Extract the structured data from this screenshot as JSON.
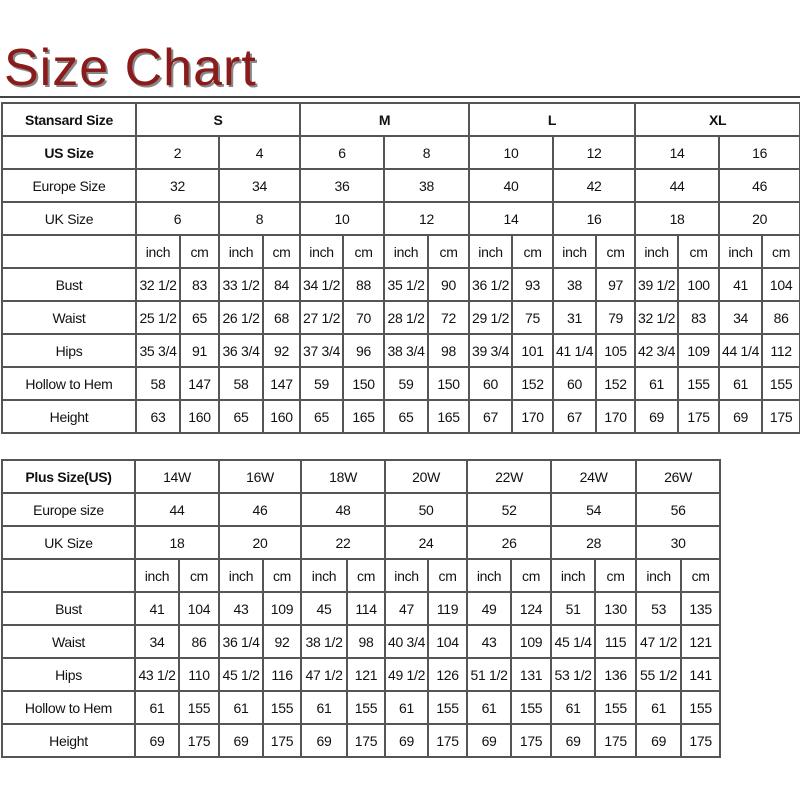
{
  "title": "Size Chart",
  "colors": {
    "title": "#8b1a1a",
    "grid": "#555555"
  },
  "standard": {
    "header_label": "Stansard Size",
    "groups": [
      "S",
      "M",
      "L",
      "XL"
    ],
    "us_label": "US Size",
    "us": [
      "2",
      "4",
      "6",
      "8",
      "10",
      "12",
      "14",
      "16"
    ],
    "eu_label": "Europe Size",
    "eu": [
      "32",
      "34",
      "36",
      "38",
      "40",
      "42",
      "44",
      "46"
    ],
    "uk_label": "UK Size",
    "uk": [
      "6",
      "8",
      "10",
      "12",
      "14",
      "16",
      "18",
      "20"
    ],
    "units": [
      "inch",
      "cm"
    ],
    "rows": [
      {
        "label": "Bust",
        "values": [
          "32 1/2",
          "83",
          "33 1/2",
          "84",
          "34 1/2",
          "88",
          "35 1/2",
          "90",
          "36 1/2",
          "93",
          "38",
          "97",
          "39 1/2",
          "100",
          "41",
          "104"
        ]
      },
      {
        "label": "Waist",
        "values": [
          "25 1/2",
          "65",
          "26 1/2",
          "68",
          "27 1/2",
          "70",
          "28 1/2",
          "72",
          "29 1/2",
          "75",
          "31",
          "79",
          "32 1/2",
          "83",
          "34",
          "86"
        ]
      },
      {
        "label": "Hips",
        "values": [
          "35 3/4",
          "91",
          "36 3/4",
          "92",
          "37 3/4",
          "96",
          "38 3/4",
          "98",
          "39 3/4",
          "101",
          "41 1/4",
          "105",
          "42 3/4",
          "109",
          "44 1/4",
          "112"
        ]
      },
      {
        "label": "Hollow to Hem",
        "values": [
          "58",
          "147",
          "58",
          "147",
          "59",
          "150",
          "59",
          "150",
          "60",
          "152",
          "60",
          "152",
          "61",
          "155",
          "61",
          "155"
        ]
      },
      {
        "label": "Height",
        "values": [
          "63",
          "160",
          "65",
          "160",
          "65",
          "165",
          "65",
          "165",
          "67",
          "170",
          "67",
          "170",
          "69",
          "175",
          "69",
          "175"
        ]
      }
    ]
  },
  "plus": {
    "header_label": "Plus Size(US)",
    "sizes": [
      "14W",
      "16W",
      "18W",
      "20W",
      "22W",
      "24W",
      "26W"
    ],
    "eu_label": "Europe size",
    "eu": [
      "44",
      "46",
      "48",
      "50",
      "52",
      "54",
      "56"
    ],
    "uk_label": "UK Size",
    "uk": [
      "18",
      "20",
      "22",
      "24",
      "26",
      "28",
      "30"
    ],
    "units": [
      "inch",
      "cm"
    ],
    "rows": [
      {
        "label": "Bust",
        "values": [
          "41",
          "104",
          "43",
          "109",
          "45",
          "114",
          "47",
          "119",
          "49",
          "124",
          "51",
          "130",
          "53",
          "135"
        ]
      },
      {
        "label": "Waist",
        "values": [
          "34",
          "86",
          "36 1/4",
          "92",
          "38 1/2",
          "98",
          "40 3/4",
          "104",
          "43",
          "109",
          "45 1/4",
          "115",
          "47 1/2",
          "121"
        ]
      },
      {
        "label": "Hips",
        "values": [
          "43 1/2",
          "110",
          "45 1/2",
          "116",
          "47 1/2",
          "121",
          "49 1/2",
          "126",
          "51 1/2",
          "131",
          "53 1/2",
          "136",
          "55 1/2",
          "141"
        ]
      },
      {
        "label": "Hollow to Hem",
        "values": [
          "61",
          "155",
          "61",
          "155",
          "61",
          "155",
          "61",
          "155",
          "61",
          "155",
          "61",
          "155",
          "61",
          "155"
        ]
      },
      {
        "label": "Height",
        "values": [
          "69",
          "175",
          "69",
          "175",
          "69",
          "175",
          "69",
          "175",
          "69",
          "175",
          "69",
          "175",
          "69",
          "175"
        ]
      }
    ]
  }
}
